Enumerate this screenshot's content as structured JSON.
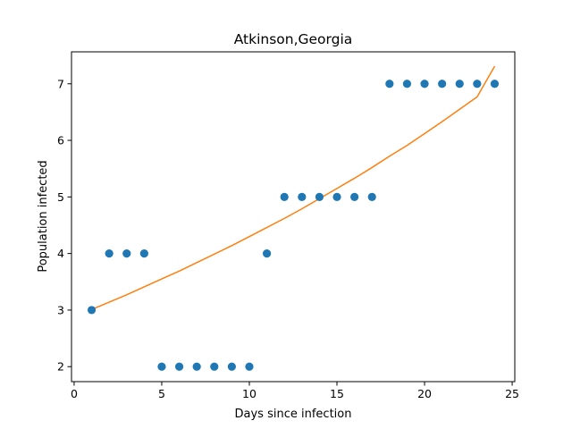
{
  "chart_data": {
    "type": "scatter",
    "title": "Atkinson,Georgia",
    "xlabel": "Days since infection",
    "ylabel": "Population infected",
    "xlim": [
      -0.15,
      25.15
    ],
    "ylim": [
      1.735,
      7.565
    ],
    "xticks": [
      0,
      5,
      10,
      15,
      20,
      25
    ],
    "yticks": [
      2,
      3,
      4,
      5,
      6,
      7
    ],
    "grid": false,
    "series": [
      {
        "kind": "scatter",
        "color": "#1f77b4",
        "x": [
          1,
          2,
          3,
          4,
          5,
          6,
          7,
          8,
          9,
          10,
          11,
          12,
          13,
          14,
          15,
          16,
          17,
          18,
          19,
          20,
          21,
          22,
          23,
          24
        ],
        "y": [
          3,
          4,
          4,
          4,
          2,
          2,
          2,
          2,
          2,
          2,
          4,
          5,
          5,
          5,
          5,
          5,
          5,
          7,
          7,
          7,
          7,
          7,
          7,
          7
        ]
      },
      {
        "kind": "line",
        "color": "#ff7f0e",
        "x": [
          1,
          2,
          3,
          4,
          5,
          6,
          7,
          8,
          9,
          10,
          11,
          12,
          13,
          14,
          15,
          16,
          17,
          18,
          19,
          20,
          21,
          22,
          23,
          24
        ],
        "y": [
          3.01,
          3.14,
          3.27,
          3.41,
          3.55,
          3.69,
          3.84,
          3.99,
          4.14,
          4.3,
          4.46,
          4.62,
          4.79,
          4.97,
          5.15,
          5.33,
          5.52,
          5.72,
          5.91,
          6.12,
          6.33,
          6.55,
          6.77,
          7.31
        ]
      }
    ]
  }
}
